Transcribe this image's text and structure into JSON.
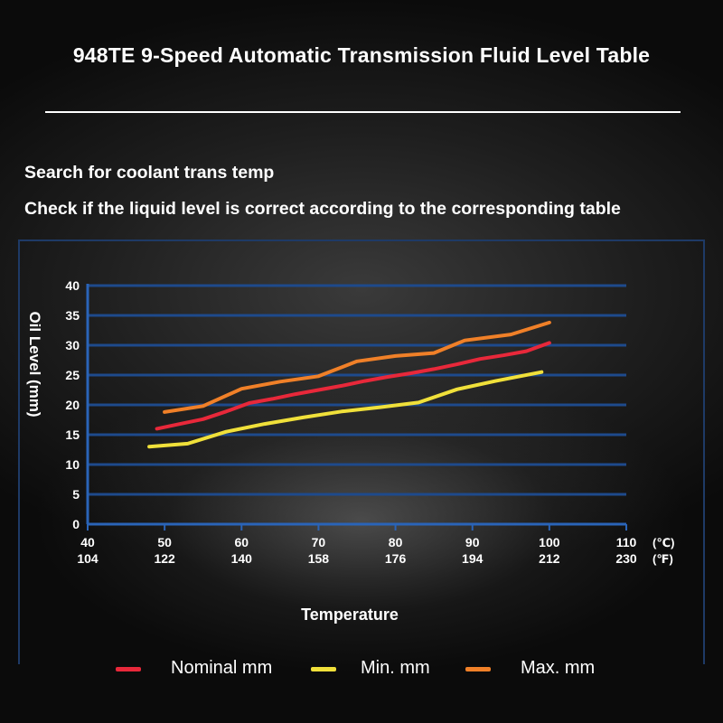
{
  "page": {
    "title": "948TE 9-Speed Automatic Transmission Fluid Level Table",
    "instructions": [
      "Search for coolant trans temp",
      "Check if the liquid level is correct according to the corresponding table"
    ]
  },
  "chart_data": {
    "type": "line",
    "title": "",
    "xlabel": "Temperature",
    "ylabel": "Oil Level (mm)",
    "xlim": [
      40,
      110
    ],
    "ylim": [
      0,
      40
    ],
    "y_ticks": [
      0,
      5,
      10,
      15,
      20,
      25,
      30,
      35,
      40
    ],
    "x_ticks_c": [
      40,
      50,
      60,
      70,
      80,
      90,
      100,
      110
    ],
    "x_ticks_f": [
      104,
      122,
      140,
      158,
      176,
      194,
      212,
      230
    ],
    "x_unit_c": "(℃)",
    "x_unit_f": "(℉)",
    "grid": true,
    "legend_position": "bottom",
    "series": [
      {
        "name": "Nominal mm",
        "color": "#e8283a",
        "x": [
          49,
          52,
          55,
          58,
          61,
          64,
          67,
          70,
          73,
          76,
          79,
          82,
          85,
          88,
          91,
          94,
          97,
          100
        ],
        "values": [
          16,
          16.8,
          17.6,
          18.9,
          20.3,
          21,
          21.8,
          22.5,
          23.2,
          24,
          24.7,
          25.3,
          26,
          26.8,
          27.7,
          28.3,
          29,
          30.4
        ]
      },
      {
        "name": "Min. mm",
        "color": "#f0e03a",
        "x": [
          48,
          53,
          58,
          63,
          68,
          73,
          78,
          83,
          88,
          93,
          99
        ],
        "values": [
          13,
          13.5,
          15.5,
          16.8,
          17.9,
          18.9,
          19.6,
          20.4,
          22.6,
          24,
          25.5
        ]
      },
      {
        "name": "Max. mm",
        "color": "#f08028",
        "x": [
          50,
          55,
          60,
          65,
          70,
          75,
          80,
          85,
          89,
          95,
          100
        ],
        "values": [
          18.8,
          19.8,
          22.7,
          23.9,
          24.8,
          27.3,
          28.2,
          28.7,
          30.8,
          31.8,
          33.8
        ]
      }
    ]
  }
}
